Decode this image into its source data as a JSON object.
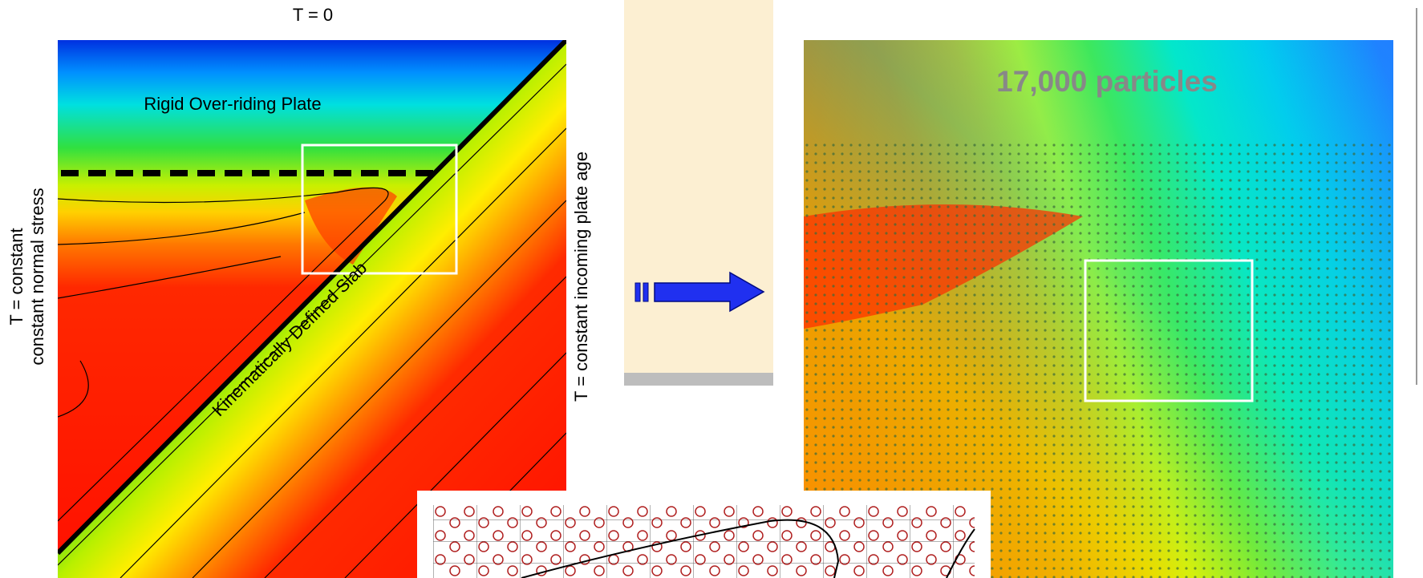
{
  "left_panel": {
    "title": "T = 0",
    "plate_label": "Rigid Over-riding Plate",
    "slab_label": "Kinematically Defined Slab",
    "left_boundary": [
      "T = constant",
      "constant normal stress"
    ],
    "right_boundary": "T = constant incoming plate age"
  },
  "right_panel": {
    "label": "17,000 particles"
  }
}
